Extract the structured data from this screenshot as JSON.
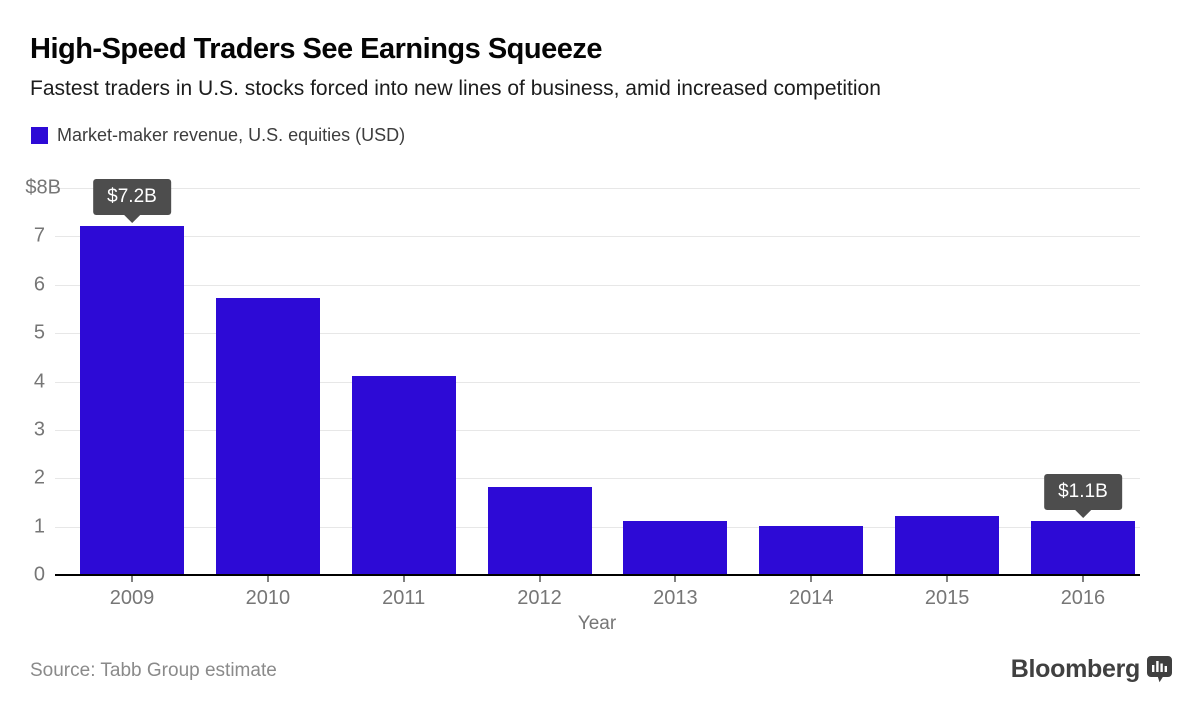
{
  "header": {
    "title": "High-Speed Traders See Earnings Squeeze",
    "subtitle": "Fastest traders in U.S. stocks forced into new lines of business, amid increased competition"
  },
  "legend": {
    "label": "Market-maker revenue, U.S. equities (USD)"
  },
  "chart_data": {
    "type": "bar",
    "title": "Market-maker revenue, U.S. equities (USD)",
    "categories": [
      "2009",
      "2010",
      "2011",
      "2012",
      "2013",
      "2014",
      "2015",
      "2016"
    ],
    "values": [
      7.2,
      5.7,
      4.1,
      1.8,
      1.1,
      1.0,
      1.2,
      1.1
    ],
    "xlabel": "Year",
    "ylabel": "",
    "unit": "USD billions",
    "ylim": [
      0,
      8
    ],
    "yticks": [
      "0",
      "1",
      "2",
      "3",
      "4",
      "5",
      "6",
      "7"
    ],
    "ytick_top_label": "$8B",
    "grid": "horizontal",
    "legend_position": "top-left",
    "annotations": [
      {
        "category": "2009",
        "label": "$7.2B"
      },
      {
        "category": "2016",
        "label": "$1.1B"
      }
    ]
  },
  "footer": {
    "source": "Source: Tabb Group estimate",
    "brand": "Bloomberg",
    "brand_icon": "bloomberg-chart-bubble-icon"
  },
  "colors": {
    "bar": "#2d0ad6",
    "tooltip_bg": "#4d4d4d",
    "tooltip_text": "#ffffff",
    "gridline": "#e7e7e7",
    "axis_text": "#767676",
    "baseline": "#000000",
    "brand_text": "#404040"
  }
}
